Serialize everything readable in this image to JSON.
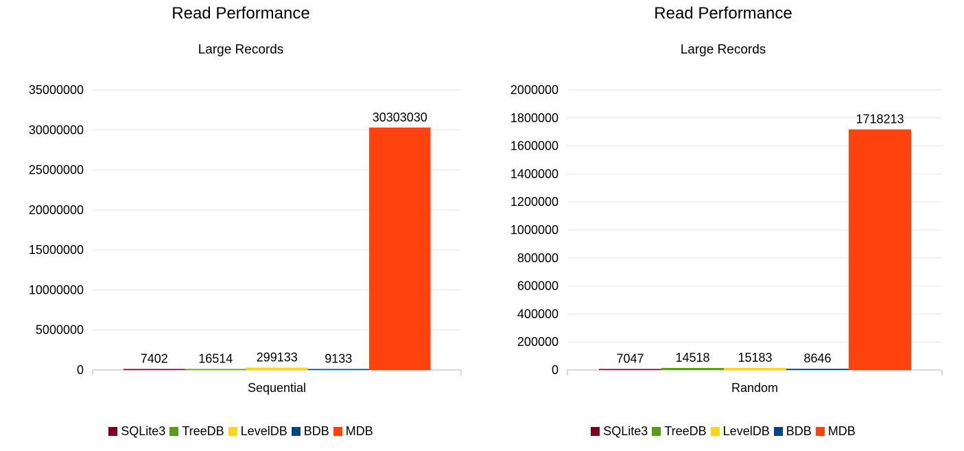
{
  "chart_data": [
    {
      "type": "bar",
      "title": "Read Performance",
      "subtitle": "Large Records",
      "categories": [
        "Sequential"
      ],
      "series": [
        {
          "name": "SQLite3",
          "color": "#7e0021",
          "values": [
            7402
          ]
        },
        {
          "name": "TreeDB",
          "color": "#579d1c",
          "values": [
            16514
          ]
        },
        {
          "name": "LevelDB",
          "color": "#ffd320",
          "values": [
            299133
          ]
        },
        {
          "name": "BDB",
          "color": "#004586",
          "values": [
            9133
          ]
        },
        {
          "name": "MDB",
          "color": "#ff420e",
          "values": [
            30303030
          ]
        }
      ],
      "ylim": [
        0,
        35000000
      ],
      "yticks": [
        "0",
        "5000000",
        "10000000",
        "15000000",
        "20000000",
        "25000000",
        "30000000",
        "35000000"
      ],
      "ytick_step": 5000000,
      "grid": true,
      "legend": "bottom"
    },
    {
      "type": "bar",
      "title": "Read Performance",
      "subtitle": "Large Records",
      "categories": [
        "Random"
      ],
      "series": [
        {
          "name": "SQLite3",
          "color": "#7e0021",
          "values": [
            7047
          ]
        },
        {
          "name": "TreeDB",
          "color": "#579d1c",
          "values": [
            14518
          ]
        },
        {
          "name": "LevelDB",
          "color": "#ffd320",
          "values": [
            15183
          ]
        },
        {
          "name": "BDB",
          "color": "#004586",
          "values": [
            8646
          ]
        },
        {
          "name": "MDB",
          "color": "#ff420e",
          "values": [
            1718213
          ]
        }
      ],
      "ylim": [
        0,
        2000000
      ],
      "yticks": [
        "0",
        "200000",
        "400000",
        "600000",
        "800000",
        "1000000",
        "1200000",
        "1400000",
        "1600000",
        "1800000",
        "2000000"
      ],
      "ytick_step": 200000,
      "grid": true,
      "legend": "bottom"
    }
  ]
}
